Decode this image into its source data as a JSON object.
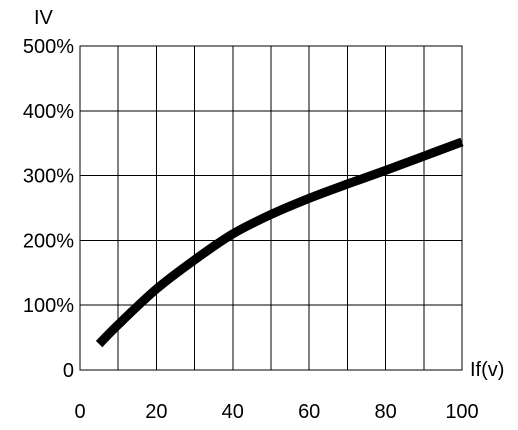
{
  "chart_data": {
    "type": "line",
    "title": "",
    "ylabel": "IV",
    "xlabel": "If(v)",
    "xlim": [
      0,
      100
    ],
    "ylim": [
      0,
      500
    ],
    "grid": true,
    "x_ticks": [
      0,
      20,
      40,
      60,
      80,
      100
    ],
    "x_tick_labels": [
      "0",
      "20",
      "40",
      "60",
      "80",
      "100"
    ],
    "y_ticks": [
      0,
      100,
      200,
      300,
      400,
      500
    ],
    "y_tick_labels": [
      "0",
      "100%",
      "200%",
      "300%",
      "400%",
      "500%"
    ],
    "grid_x_step": 10,
    "grid_y_step": 100,
    "series": [
      {
        "x": [
          5,
          10,
          20,
          30,
          40,
          50,
          60,
          70,
          80,
          90,
          100
        ],
        "values": [
          40,
          70,
          125,
          170,
          210,
          240,
          265,
          287,
          308,
          330,
          352
        ]
      }
    ]
  }
}
